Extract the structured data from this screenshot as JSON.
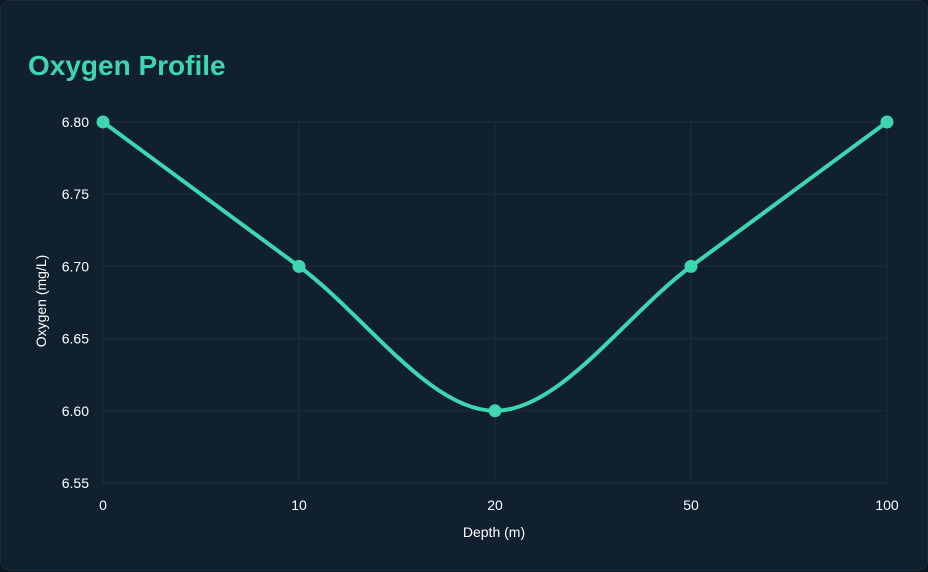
{
  "chart_data": {
    "type": "line",
    "title": "Oxygen Profile",
    "xlabel": "Depth (m)",
    "ylabel": "Oxygen (mg/L)",
    "categories": [
      "0",
      "10",
      "20",
      "50",
      "100"
    ],
    "series": [
      {
        "values": [
          6.8,
          6.7,
          6.6,
          6.7,
          6.8
        ]
      }
    ],
    "ylim": [
      6.55,
      6.8
    ],
    "yticks": [
      "6.80",
      "6.75",
      "6.70",
      "6.65",
      "6.60",
      "6.55"
    ],
    "grid": true,
    "legend": "none",
    "line_color": "#3dd6b0",
    "title_color": "#3dd6b0",
    "background_color": "#10202f",
    "text_color": "#ffffff"
  }
}
